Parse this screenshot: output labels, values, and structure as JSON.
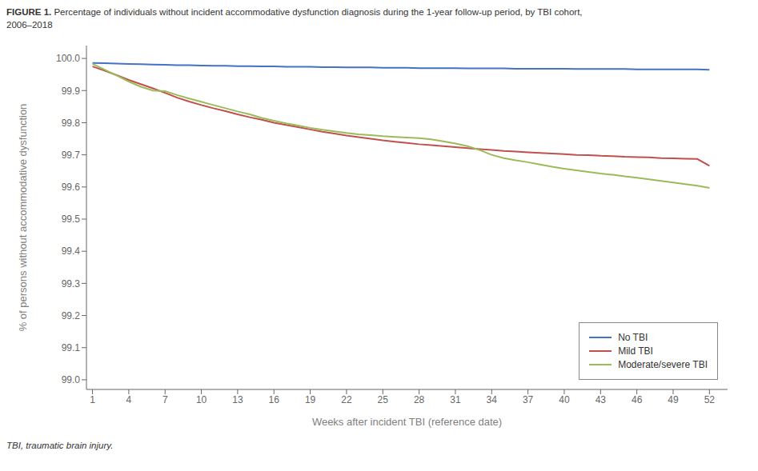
{
  "chart_data": {
    "type": "line",
    "title": "FIGURE 1. Percentage of individuals without incident accommodative dysfunction diagnosis during the 1-year follow-up period, by TBI cohort,\n2006–2018",
    "x_label": "Weeks after incident TBI (reference date)",
    "y_label": "% of persons without accommodative dysfunction",
    "footnote": "TBI, traumatic brain injury.",
    "x": [
      1,
      2,
      3,
      4,
      5,
      6,
      7,
      8,
      9,
      10,
      11,
      12,
      13,
      14,
      15,
      16,
      17,
      18,
      19,
      20,
      21,
      22,
      23,
      24,
      25,
      26,
      27,
      28,
      29,
      30,
      31,
      32,
      33,
      34,
      35,
      36,
      37,
      38,
      39,
      40,
      41,
      42,
      43,
      44,
      45,
      46,
      47,
      48,
      49,
      50,
      51,
      52
    ],
    "xlim": [
      0.5,
      53.5
    ],
    "xticks": [
      1,
      4,
      7,
      10,
      13,
      16,
      19,
      22,
      25,
      28,
      31,
      34,
      37,
      40,
      43,
      46,
      49,
      52
    ],
    "ylim": [
      98.97,
      100.04
    ],
    "yticks": [
      {
        "value": 99.0,
        "label": "99.0"
      },
      99.1,
      99.2,
      99.3,
      99.4,
      99.5,
      99.6,
      99.7,
      99.8,
      99.9,
      {
        "value": 100.0,
        "label": "100.0"
      }
    ],
    "grid": false,
    "legend": "lower right",
    "series": [
      {
        "name": "No TBI",
        "color": "#4472C4",
        "values": [
          99.986,
          99.985,
          99.984,
          99.983,
          99.982,
          99.981,
          99.98,
          99.979,
          99.979,
          99.978,
          99.977,
          99.977,
          99.976,
          99.976,
          99.975,
          99.975,
          99.974,
          99.974,
          99.974,
          99.973,
          99.973,
          99.972,
          99.972,
          99.972,
          99.971,
          99.971,
          99.971,
          99.97,
          99.97,
          99.97,
          99.97,
          99.969,
          99.969,
          99.969,
          99.969,
          99.968,
          99.968,
          99.968,
          99.968,
          99.968,
          99.967,
          99.967,
          99.967,
          99.967,
          99.967,
          99.966,
          99.966,
          99.966,
          99.966,
          99.966,
          99.966,
          99.965
        ]
      },
      {
        "name": "Mild TBI",
        "color": "#C0504D",
        "values": [
          99.975,
          99.962,
          99.948,
          99.933,
          99.92,
          99.907,
          99.893,
          99.878,
          99.866,
          99.855,
          99.845,
          99.836,
          99.826,
          99.817,
          99.809,
          99.8,
          99.793,
          99.786,
          99.779,
          99.772,
          99.766,
          99.76,
          99.755,
          99.75,
          99.745,
          99.741,
          99.737,
          99.733,
          99.73,
          99.727,
          99.724,
          99.721,
          99.718,
          99.715,
          99.712,
          99.71,
          99.708,
          99.706,
          99.704,
          99.702,
          99.7,
          99.699,
          99.697,
          99.696,
          99.694,
          99.693,
          99.692,
          99.69,
          99.689,
          99.688,
          99.687,
          99.666
        ]
      },
      {
        "name": "Moderate/severe TBI",
        "color": "#9BBB59",
        "values": [
          99.983,
          99.965,
          99.947,
          99.928,
          99.912,
          99.9,
          99.898,
          99.886,
          99.875,
          99.865,
          99.855,
          99.845,
          99.835,
          99.826,
          99.815,
          99.806,
          99.798,
          99.791,
          99.784,
          99.778,
          99.773,
          99.768,
          99.764,
          99.761,
          99.758,
          99.756,
          99.754,
          99.752,
          99.748,
          99.742,
          99.735,
          99.727,
          99.715,
          99.7,
          99.69,
          99.683,
          99.677,
          99.67,
          99.663,
          99.657,
          99.652,
          99.647,
          99.642,
          99.638,
          99.633,
          99.629,
          99.624,
          99.619,
          99.614,
          99.609,
          99.604,
          99.597
        ]
      }
    ]
  }
}
